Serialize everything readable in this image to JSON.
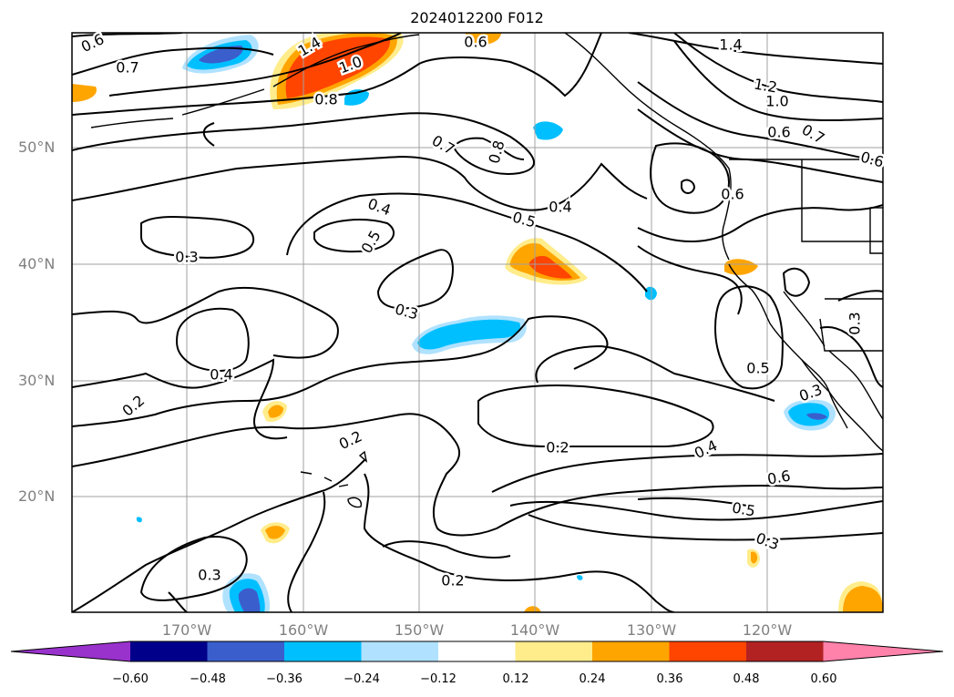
{
  "title": "2024012200 F012",
  "latitude_labels": [
    "50°N",
    "40°N",
    "30°N",
    "20°N"
  ],
  "longitude_labels": [
    "170°W",
    "160°W",
    "150°W",
    "140°W",
    "130°W",
    "120°W"
  ],
  "colorbar": {
    "colors": [
      "#9932cc",
      "#00008b",
      "#3a5fcd",
      "#00bfff",
      "#b0e2ff",
      "#ffffff",
      "#ffec8b",
      "#ffa500",
      "#ff4500",
      "#b22222",
      "#ff82ab"
    ],
    "tick_labels": [
      "−0.60",
      "−0.48",
      "−0.36",
      "−0.24",
      "−0.12",
      "0.12",
      "0.24",
      "0.36",
      "0.48",
      "0.60"
    ]
  },
  "contour_labels": [
    "0.6",
    "0.7",
    "1.4",
    "1.0",
    "0.8",
    "0.6",
    "1.4",
    "1.2",
    "1.0",
    "0.6",
    "0.7",
    "0.6",
    "0.7",
    "0.8",
    "0.6",
    "0.4",
    "0.5",
    "0.4",
    "0.5",
    "0.3",
    "0.3",
    "0.4",
    "0.2",
    "0.5",
    "0.3",
    "0.3",
    "0.2",
    "0.2",
    "0.4",
    "0.6",
    "0.5",
    "0.3",
    "0.3",
    "0.2"
  ]
}
